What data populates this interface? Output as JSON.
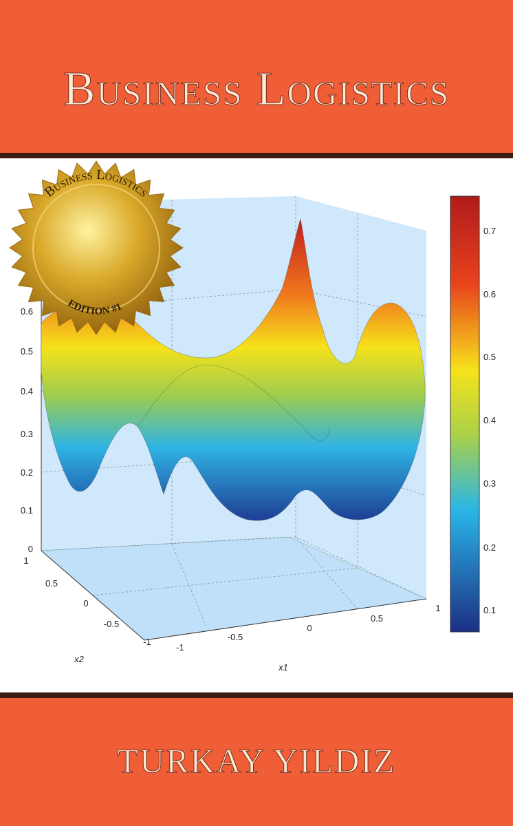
{
  "cover": {
    "title": "Business Logistics",
    "author": "Turkay Yildiz",
    "seal": {
      "title": "Business Logistics",
      "edition": "Edition #1"
    },
    "plot": {
      "z_ticks": [
        "0",
        "0.1",
        "0.2",
        "0.3",
        "0.4",
        "0.5",
        "0.6"
      ],
      "x1_ticks": [
        "-1",
        "-0.5",
        "0",
        "0.5",
        "1"
      ],
      "x2_ticks": [
        "1",
        "0.5",
        "0",
        "-0.5",
        "-1"
      ],
      "x1_label": "x1",
      "x2_label": "x2",
      "colorbar_ticks": [
        "0.7",
        "0.6",
        "0.5",
        "0.4",
        "0.3",
        "0.2",
        "0.1"
      ]
    }
  }
}
